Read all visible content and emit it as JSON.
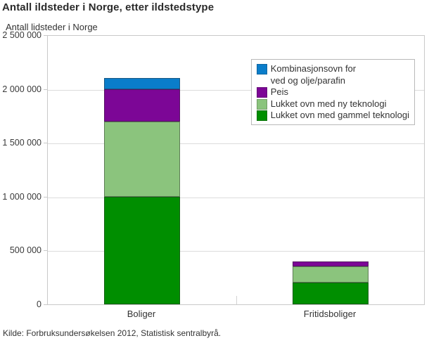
{
  "chart": {
    "title": "Antall ildsteder i Norge, etter ildstedstype",
    "y_axis_title": "Antall lidsteder i Norge",
    "source": "Kilde: Forbruksundersøkelsen 2012, Statistisk sentralbyrå."
  },
  "chart_data": {
    "type": "bar",
    "stacked": true,
    "title": "Antall ildsteder i Norge, etter ildstedstype",
    "ylabel": "Antall lidsteder i Norge",
    "xlabel": "",
    "ylim": [
      0,
      2500000
    ],
    "grid": true,
    "legend_position": "top-right-inside",
    "categories": [
      "Boliger",
      "Fritidsboliger"
    ],
    "series": [
      {
        "name": "Kombinasjonsovn for ved og olje/parafin",
        "legend_label": "Kombinasjonsovn for\nved og olje/parafin",
        "color": "#0a7dca",
        "values": [
          100000,
          0
        ]
      },
      {
        "name": "Peis",
        "legend_label": "Peis",
        "color": "#7c0696",
        "values": [
          300000,
          50000
        ]
      },
      {
        "name": "Lukket ovn med ny teknologi",
        "legend_label": "Lukket ovn med ny teknologi",
        "color": "#8bc47d",
        "values": [
          700000,
          150000
        ]
      },
      {
        "name": "Lukket ovn med gammel teknologi",
        "legend_label": "Lukket ovn med gammel teknologi",
        "color": "#008e00",
        "values": [
          1000000,
          200000
        ]
      }
    ],
    "totals": {
      "Boliger": 2100000,
      "Fritidsboliger": 400000
    },
    "yticks": [
      {
        "value": 0,
        "label": "0"
      },
      {
        "value": 500000,
        "label": "500 000"
      },
      {
        "value": 1000000,
        "label": "1 000 000"
      },
      {
        "value": 1500000,
        "label": "1 500 000"
      },
      {
        "value": 2000000,
        "label": "2 000 000"
      },
      {
        "value": 2500000,
        "label": "2 500 000"
      }
    ]
  }
}
